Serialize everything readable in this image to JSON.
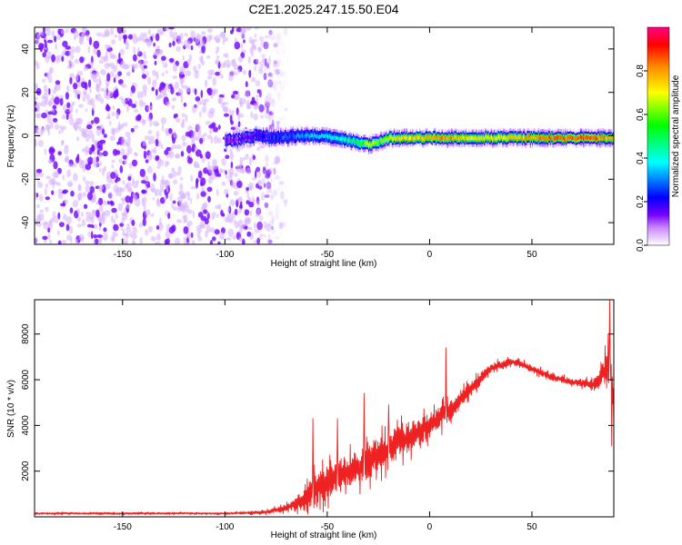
{
  "figure_title": "C2E1.2025.247.15.50.E04",
  "colors": {
    "snr_line": "#ee2222",
    "axes": "#000000",
    "background": "#ffffff",
    "colormap_stops": [
      "#ffffff",
      "#cc88ff",
      "#7700ff",
      "#0000ff",
      "#00ffff",
      "#00ff00",
      "#ffff00",
      "#ff8800",
      "#ff0000",
      "#ff0080"
    ]
  },
  "chart_data": [
    {
      "type": "heatmap",
      "title": "C2E1.2025.247.15.50.E04",
      "xlabel": "Height of straight line (km)",
      "ylabel": "Frequency (Hz)",
      "xlim": [
        -193,
        90
      ],
      "ylim": [
        -50,
        50
      ],
      "x_ticks": [
        -150,
        -100,
        -50,
        0,
        50
      ],
      "x_tick_labels": [
        "-150",
        "-100",
        "-50",
        "0",
        "50"
      ],
      "y_ticks": [
        -40,
        -20,
        0,
        20,
        40
      ],
      "y_tick_labels": [
        "-40",
        "-20",
        "0",
        "20",
        "40"
      ],
      "colorbar": {
        "label": "Normalized spectral amplitude",
        "range": [
          0,
          1
        ],
        "ticks": [
          0.0,
          0.2,
          0.4,
          0.6,
          0.8
        ],
        "tick_labels": [
          "0.0",
          "0.2",
          "0.4",
          "0.6",
          "0.8"
        ]
      },
      "noise_region_x": [
        -193,
        -70
      ],
      "signal_track": {
        "x": [
          -95,
          -85,
          -75,
          -65,
          -55,
          -45,
          -35,
          -30,
          -25,
          -20,
          -10,
          0,
          10,
          20,
          40,
          60,
          80,
          90
        ],
        "freq_hz": [
          -2,
          0,
          -1,
          0,
          0,
          -1,
          -3,
          -4,
          -3,
          -1,
          -1,
          -1,
          -1,
          -1,
          -1,
          -1,
          -1,
          -1
        ],
        "amplitude": [
          0.15,
          0.2,
          0.25,
          0.3,
          0.35,
          0.4,
          0.5,
          0.7,
          0.6,
          0.7,
          0.75,
          0.8,
          0.8,
          0.7,
          0.75,
          0.85,
          0.85,
          0.75
        ]
      }
    },
    {
      "type": "line",
      "xlabel": "Height of straight line (km)",
      "ylabel": "SNR (10 * v/v)",
      "xlim": [
        -193,
        90
      ],
      "ylim": [
        0,
        9500
      ],
      "x_ticks": [
        -150,
        -100,
        -50,
        0,
        50
      ],
      "x_tick_labels": [
        "-150",
        "-100",
        "-50",
        "0",
        "50"
      ],
      "y_ticks": [
        2000,
        4000,
        6000,
        8000
      ],
      "y_tick_labels": [
        "2000",
        "4000",
        "6000",
        "8000"
      ],
      "series": [
        {
          "name": "SNR",
          "x": [
            -193,
            -150,
            -100,
            -80,
            -70,
            -60,
            -55,
            -50,
            -40,
            -30,
            -20,
            -10,
            0,
            10,
            20,
            30,
            40,
            50,
            60,
            70,
            80,
            85,
            88,
            90
          ],
          "baseline": [
            150,
            150,
            150,
            200,
            400,
            800,
            1300,
            1500,
            2000,
            2400,
            3000,
            3500,
            4000,
            4700,
            5600,
            6500,
            6800,
            6500,
            6100,
            5900,
            5800,
            6300,
            6800,
            5000
          ],
          "spread": [
            70,
            70,
            70,
            120,
            250,
            900,
            1300,
            1200,
            1300,
            1300,
            1200,
            1100,
            900,
            800,
            600,
            350,
            250,
            250,
            250,
            250,
            350,
            900,
            1800,
            1500
          ],
          "peaks": [
            {
              "x": -57,
              "y": 4300
            },
            {
              "x": -45,
              "y": 4300
            },
            {
              "x": -32,
              "y": 5400
            },
            {
              "x": -20,
              "y": 4900
            },
            {
              "x": 8,
              "y": 7400
            },
            {
              "x": 88,
              "y": 9500
            },
            {
              "x": 89,
              "y": 3100
            }
          ]
        }
      ]
    }
  ]
}
